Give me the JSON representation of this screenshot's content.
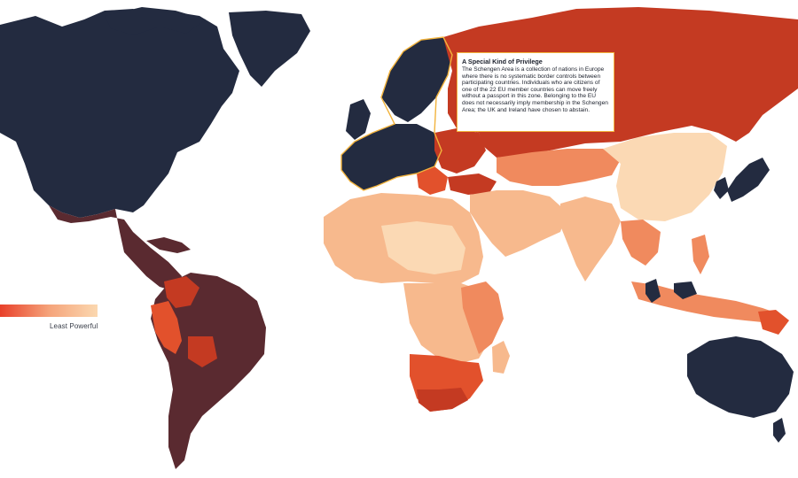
{
  "legend": {
    "label": "Least Powerful",
    "gradient": [
      "#e8402a",
      "#f5a37a",
      "#fbd8b0"
    ]
  },
  "callout": {
    "title": "A Special Kind of Privilege",
    "body": "The Schengen Area is a collection of nations in Europe where there is no systematic border controls between participating countries. Individuals who are citizens of one of the 22 EU member countries can move freely without a passport in this zone. Belonging to the EU does not necessarily imply membership in the Schengen Area; the UK and Ireland have chosen to abstain."
  },
  "colors": {
    "most_powerful": "#232b40",
    "high": "#5a2a30",
    "upper_mid": "#c43a22",
    "mid": "#e2512c",
    "lower_mid": "#f08a5e",
    "low": "#f7b98d",
    "least": "#fbd9b4",
    "schengen_outline": "#f2b33d"
  }
}
